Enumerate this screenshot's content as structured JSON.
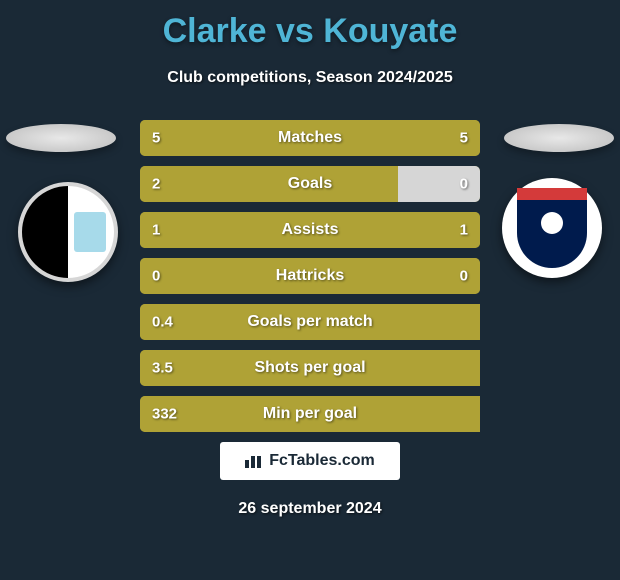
{
  "title": "Clarke vs Kouyate",
  "subtitle": "Club competitions, Season 2024/2025",
  "date": "26 september 2024",
  "footer_brand": "FcTables.com",
  "colors": {
    "background": "#1a2936",
    "title": "#4fb5d6",
    "text": "#ffffff",
    "bar_base": "#afa236",
    "bar_left_fill": "#afa236",
    "bar_right_fill": "#d6d6d6"
  },
  "stat_bars": [
    {
      "label": "Matches",
      "left_val": "5",
      "right_val": "5",
      "left_pct": 50,
      "right_pct": 50,
      "right_color": "#afa236"
    },
    {
      "label": "Goals",
      "left_val": "2",
      "right_val": "0",
      "left_pct": 76,
      "right_pct": 24,
      "right_color": "#d6d6d6"
    },
    {
      "label": "Assists",
      "left_val": "1",
      "right_val": "1",
      "left_pct": 50,
      "right_pct": 50,
      "right_color": "#afa236"
    },
    {
      "label": "Hattricks",
      "left_val": "0",
      "right_val": "0",
      "left_pct": 50,
      "right_pct": 50,
      "right_color": "#afa236"
    },
    {
      "label": "Goals per match",
      "left_val": "0.4",
      "right_val": "",
      "left_pct": 100,
      "right_pct": 0,
      "right_color": "#afa236"
    },
    {
      "label": "Shots per goal",
      "left_val": "3.5",
      "right_val": "",
      "left_pct": 100,
      "right_pct": 0,
      "right_color": "#afa236"
    },
    {
      "label": "Min per goal",
      "left_val": "332",
      "right_val": "",
      "left_pct": 100,
      "right_pct": 0,
      "right_color": "#afa236"
    }
  ]
}
